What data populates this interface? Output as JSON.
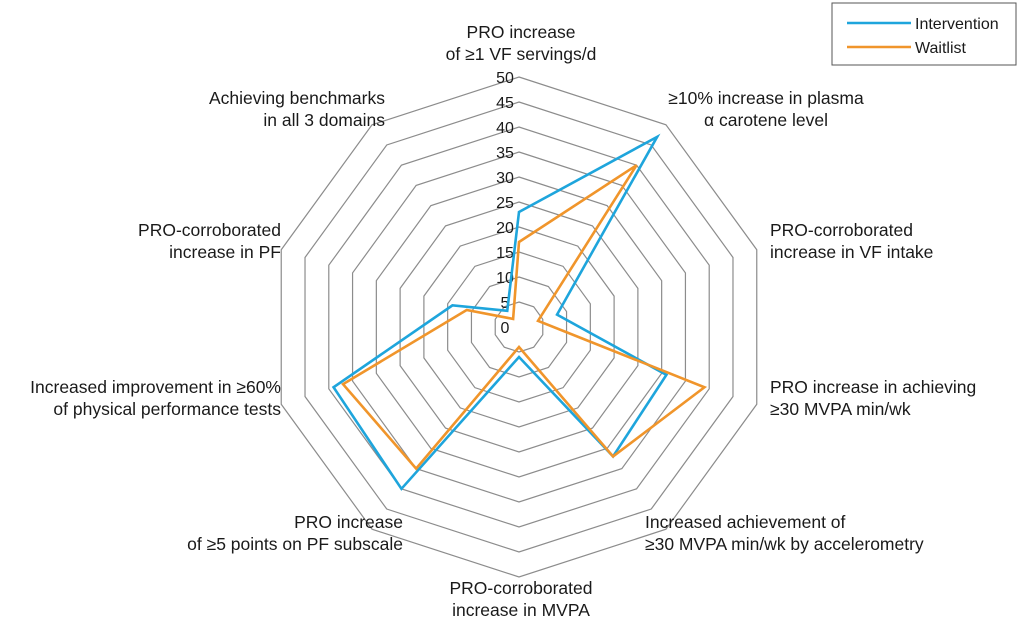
{
  "chart_data": {
    "type": "radar",
    "axes": [
      "PRO increase\nof ≥1 VF servings/d",
      "≥10% increase in plasma\nα carotene level",
      "PRO-corroborated\nincrease in VF intake",
      "PRO increase in achieving\n≥30 MVPA min/wk",
      "Increased achievement of\n≥30 MVPA min/wk by accelerometry",
      "PRO-corroborated\nincrease in MVPA",
      "PRO increase\nof ≥5 points on PF subscale",
      "Increased improvement in ≥60%\nof physical performance tests",
      "PRO-corroborated\nincrease in PF",
      "Achieving benchmarks\nin all 3 domains"
    ],
    "ticks": [
      "0",
      "5",
      "10",
      "15",
      "20",
      "25",
      "30",
      "35",
      "40",
      "45",
      "50"
    ],
    "rlim": [
      0,
      50
    ],
    "grid": true,
    "legend_position": "top-right",
    "series": [
      {
        "name": "Intervention",
        "color": "#1ea5dc",
        "values": [
          23,
          47,
          8,
          31,
          32,
          6,
          40,
          39,
          14,
          4
        ]
      },
      {
        "name": "Waitlist",
        "color": "#f0952b",
        "values": [
          17,
          40,
          4,
          39,
          32,
          4,
          35,
          37,
          11,
          2
        ]
      }
    ]
  }
}
